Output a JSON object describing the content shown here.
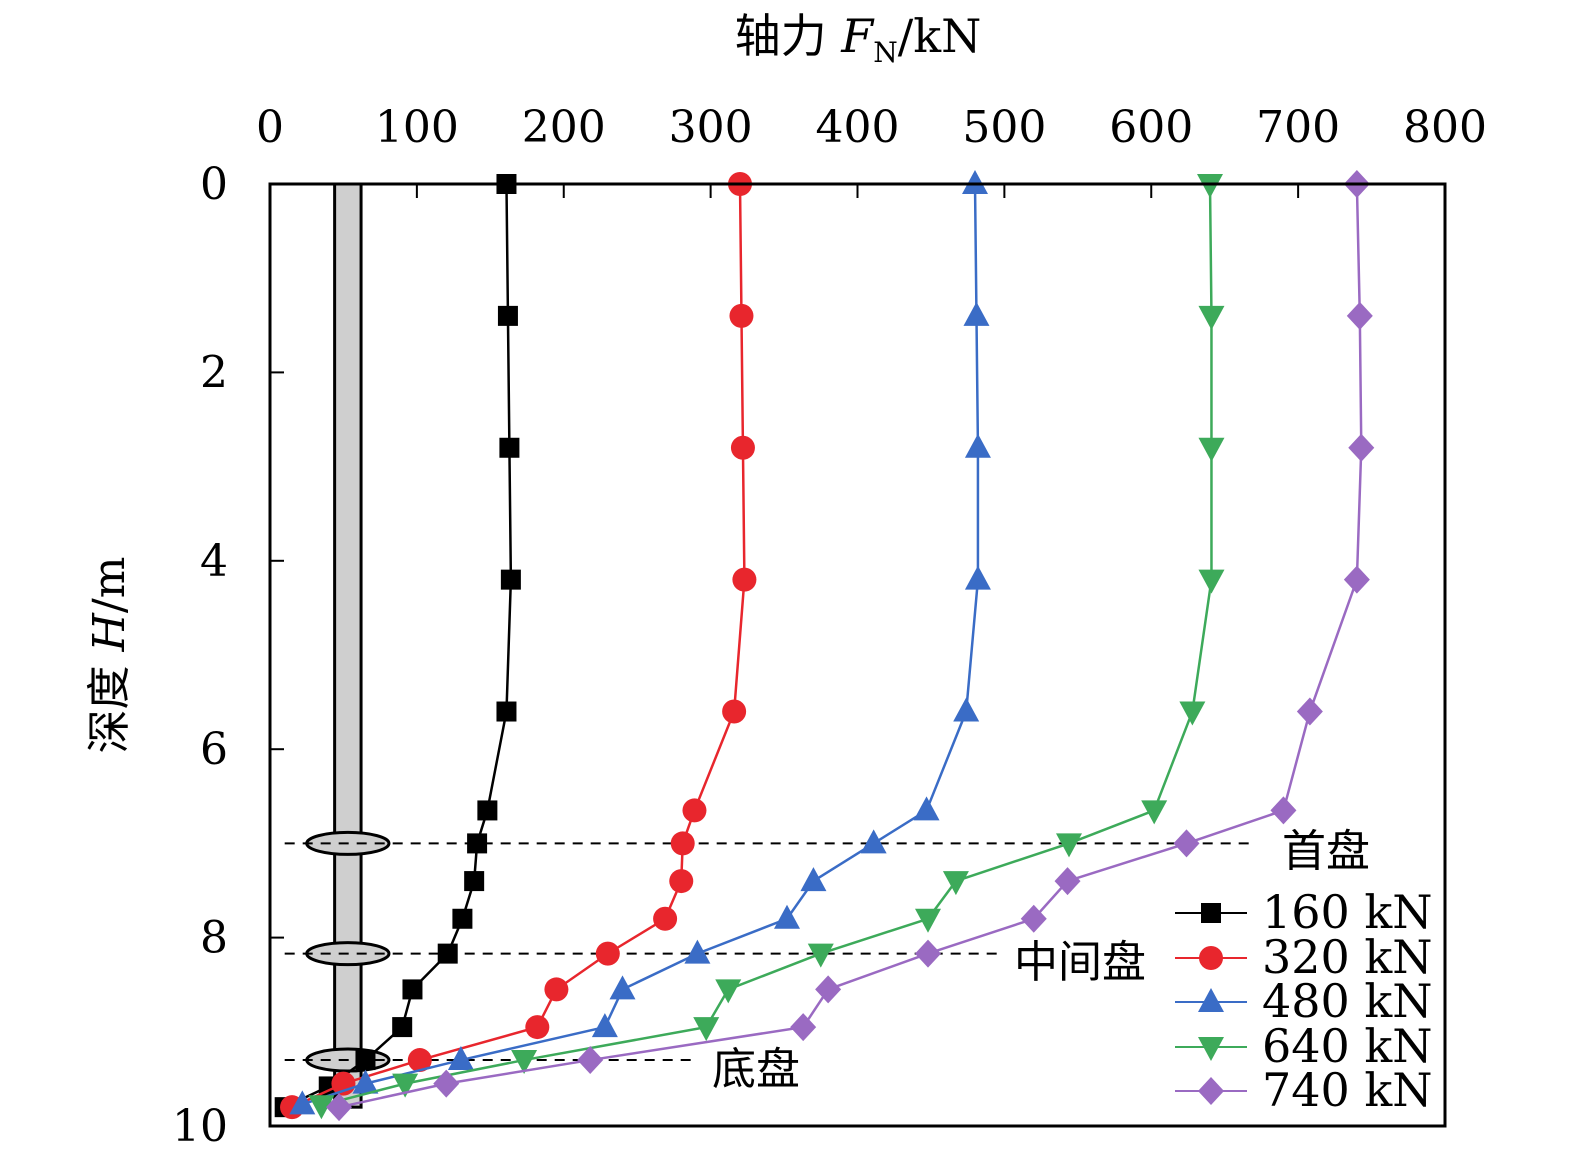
{
  "chart_data": {
    "type": "line",
    "xlabel": {
      "prefix": "轴力 ",
      "var": "F",
      "sub": "N",
      "unit": "/kN"
    },
    "ylabel": {
      "prefix": "深度 ",
      "var": "H",
      "unit": "/m"
    },
    "x_axis_position": "top",
    "y_axis_inverted": true,
    "xlim": [
      0,
      800
    ],
    "ylim": [
      0,
      10
    ],
    "xticks": [
      "0",
      "100",
      "200",
      "300",
      "400",
      "500",
      "600",
      "700",
      "800"
    ],
    "yticks": [
      "0",
      "2",
      "4",
      "6",
      "8",
      "10"
    ],
    "grid": false,
    "legend_position": "bottom-right",
    "series": [
      {
        "name": "160 kN",
        "color": "#000000",
        "marker": "square",
        "points": [
          [
            161,
            0
          ],
          [
            162,
            1.4
          ],
          [
            163,
            2.8
          ],
          [
            164,
            4.2
          ],
          [
            161,
            5.6
          ],
          [
            148,
            6.65
          ],
          [
            141,
            7.0
          ],
          [
            139,
            7.4
          ],
          [
            131,
            7.8
          ],
          [
            121,
            8.17
          ],
          [
            97,
            8.55
          ],
          [
            90,
            8.95
          ],
          [
            65,
            9.3
          ],
          [
            40,
            9.58
          ],
          [
            10,
            9.8
          ]
        ]
      },
      {
        "name": "320 kN",
        "color": "#e8262d",
        "marker": "circle",
        "points": [
          [
            320,
            0
          ],
          [
            321,
            1.4
          ],
          [
            322,
            2.8
          ],
          [
            323,
            4.2
          ],
          [
            316,
            5.6
          ],
          [
            289,
            6.65
          ],
          [
            281,
            7.0
          ],
          [
            280,
            7.4
          ],
          [
            269,
            7.8
          ],
          [
            230,
            8.17
          ],
          [
            195,
            8.55
          ],
          [
            182,
            8.95
          ],
          [
            102,
            9.3
          ],
          [
            50,
            9.55
          ],
          [
            15,
            9.8
          ]
        ]
      },
      {
        "name": "480 kN",
        "color": "#3a6cc6",
        "marker": "triangle-up",
        "points": [
          [
            480,
            0
          ],
          [
            481,
            1.4
          ],
          [
            482,
            2.8
          ],
          [
            482,
            4.2
          ],
          [
            474,
            5.6
          ],
          [
            447,
            6.65
          ],
          [
            411,
            7.0
          ],
          [
            370,
            7.4
          ],
          [
            352,
            7.8
          ],
          [
            291,
            8.17
          ],
          [
            240,
            8.55
          ],
          [
            228,
            8.95
          ],
          [
            130,
            9.3
          ],
          [
            65,
            9.55
          ],
          [
            22,
            9.77
          ]
        ]
      },
      {
        "name": "640 kN",
        "color": "#3daa5a",
        "marker": "triangle-down",
        "points": [
          [
            640,
            0
          ],
          [
            641,
            1.4
          ],
          [
            641,
            2.8
          ],
          [
            641,
            4.2
          ],
          [
            628,
            5.6
          ],
          [
            602,
            6.65
          ],
          [
            544,
            7.0
          ],
          [
            467,
            7.4
          ],
          [
            448,
            7.8
          ],
          [
            375,
            8.17
          ],
          [
            312,
            8.55
          ],
          [
            297,
            8.95
          ],
          [
            173,
            9.3
          ],
          [
            92,
            9.55
          ],
          [
            35,
            9.78
          ]
        ]
      },
      {
        "name": "740 kN",
        "color": "#9a6ac2",
        "marker": "diamond",
        "points": [
          [
            740,
            0
          ],
          [
            742,
            1.4
          ],
          [
            743,
            2.8
          ],
          [
            740,
            4.2
          ],
          [
            708,
            5.6
          ],
          [
            690,
            6.65
          ],
          [
            624,
            7.0
          ],
          [
            543,
            7.4
          ],
          [
            520,
            7.8
          ],
          [
            448,
            8.17
          ],
          [
            380,
            8.55
          ],
          [
            363,
            8.95
          ],
          [
            218,
            9.3
          ],
          [
            120,
            9.55
          ],
          [
            47,
            9.8
          ]
        ]
      }
    ],
    "pile": {
      "x_left": 44,
      "x_right": 62,
      "disc_depths": [
        7.0,
        8.17,
        9.3
      ],
      "disc_halfwidth": 28
    },
    "reference_lines": [
      {
        "label": "首盘",
        "depth": 7.0,
        "x_start": 10,
        "x_end": 670
      },
      {
        "label": "中间盘",
        "depth": 8.17,
        "x_start": 10,
        "x_end": 496
      },
      {
        "label": "底盘",
        "depth": 9.3,
        "x_start": 10,
        "x_end": 290
      }
    ]
  }
}
